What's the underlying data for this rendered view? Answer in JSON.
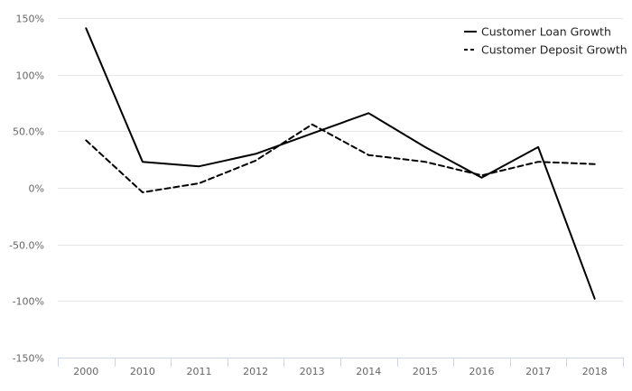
{
  "chart_data": {
    "type": "line",
    "title": "",
    "xlabel": "",
    "ylabel": "",
    "categories": [
      "2000",
      "2010",
      "2011",
      "2012",
      "2013",
      "2014",
      "2015",
      "2016",
      "2017",
      "2018"
    ],
    "ylim": [
      -150,
      150
    ],
    "yticks": [
      150,
      100,
      50,
      0,
      -50,
      -100,
      -150
    ],
    "ytick_labels": [
      "150%",
      "100%",
      "50.0%",
      "0%",
      "-50.0%",
      "-100%",
      "-150%"
    ],
    "grid": true,
    "legend_position": "top-right",
    "series": [
      {
        "name": "Customer Loan Growth",
        "line_style": "solid",
        "color": "#000000",
        "values": [
          141,
          23,
          19,
          30,
          48,
          66,
          36,
          9,
          36,
          -98
        ]
      },
      {
        "name": "Customer Deposit Growth",
        "line_style": "dashed",
        "color": "#000000",
        "values": [
          42,
          -4,
          4,
          24,
          56,
          29,
          23,
          11,
          23,
          21
        ]
      }
    ]
  }
}
